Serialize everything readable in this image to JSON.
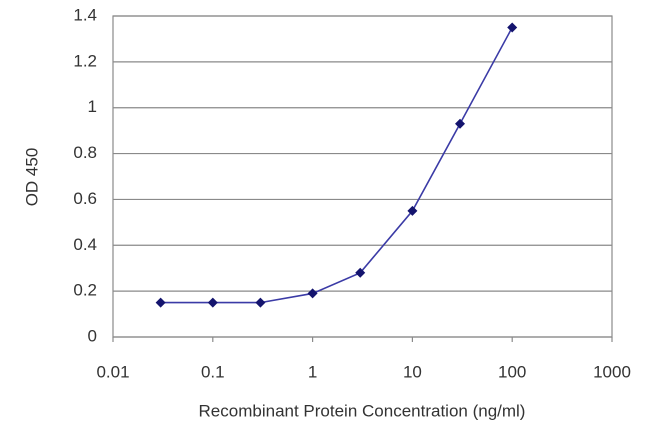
{
  "chart_data": {
    "type": "line",
    "x_label": "Recombinant Protein Concentration (ng/ml)",
    "y_label": "OD 450",
    "x": [
      0.03,
      0.1,
      0.3,
      1,
      3,
      10,
      30,
      100
    ],
    "values": [
      0.15,
      0.15,
      0.15,
      0.19,
      0.28,
      0.55,
      0.93,
      1.35
    ],
    "color": "#3b3ba6",
    "marker_color": "#14146e",
    "x_log": true,
    "xlim": [
      0.01,
      1000
    ],
    "xticks": [
      0.01,
      0.1,
      1,
      10,
      100,
      1000
    ],
    "ylim": [
      0,
      1.4
    ],
    "yticks": [
      0,
      0.2,
      0.4,
      0.6,
      0.8,
      1,
      1.2,
      1.4
    ],
    "grid": true
  }
}
